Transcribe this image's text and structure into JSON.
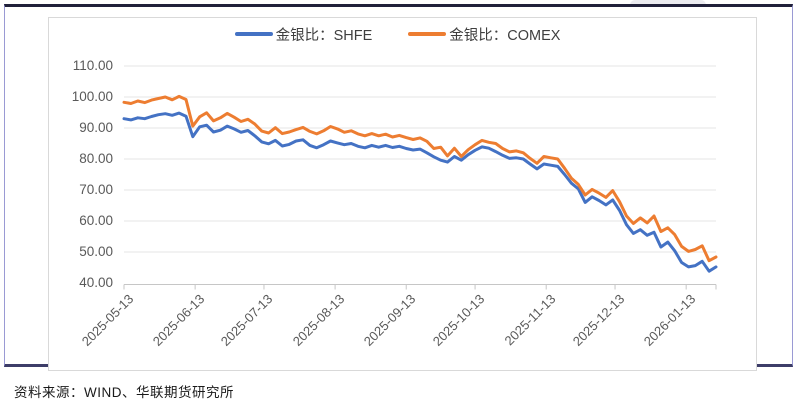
{
  "caption": "资料来源：WIND、华联期货研究所",
  "legend": {
    "items": [
      {
        "label": "金银比：SHFE",
        "color": "#4472C4"
      },
      {
        "label": "金银比：COMEX",
        "color": "#ED7D31"
      }
    ]
  },
  "chart_data": {
    "type": "line",
    "title": "",
    "xlabel": "",
    "ylabel": "",
    "grid": "horizontal",
    "legend_position": "top",
    "ylim": [
      40,
      110
    ],
    "y_ticks": [
      110,
      100,
      90,
      80,
      70,
      60,
      50,
      40
    ],
    "y_tick_labels": [
      "110.00",
      "100.00",
      "90.00",
      "80.00",
      "70.00",
      "60.00",
      "50.00",
      "40.00"
    ],
    "x_tick_labels": [
      "2025-05-13",
      "2025-06-13",
      "2025-07-13",
      "2025-08-13",
      "2025-09-13",
      "2025-10-13",
      "2025-11-13",
      "2025-12-13",
      "2026-01-13"
    ],
    "x_tick_day_index": [
      0,
      31,
      61,
      92,
      123,
      153,
      184,
      214,
      245
    ],
    "x_total_days": 258,
    "x_start": "2025-05-13",
    "x_end": "2026-01-26",
    "point_day_step": 3,
    "series": [
      {
        "name": "金银比：SHFE",
        "color": "#4472C4",
        "values": [
          93.0,
          92.6,
          93.3,
          93.0,
          93.7,
          94.3,
          94.6,
          94.1,
          94.8,
          93.8,
          87.2,
          90.4,
          90.9,
          88.7,
          89.3,
          90.6,
          89.7,
          88.6,
          89.2,
          87.5,
          85.5,
          84.9,
          86.0,
          84.2,
          84.7,
          85.8,
          86.2,
          84.4,
          83.6,
          84.6,
          85.8,
          85.2,
          84.6,
          85.0,
          84.1,
          83.6,
          84.4,
          83.8,
          84.4,
          83.7,
          84.1,
          83.4,
          82.9,
          83.2,
          82.0,
          80.7,
          79.6,
          79.0,
          80.8,
          79.6,
          81.4,
          82.8,
          83.9,
          83.5,
          82.4,
          81.2,
          80.2,
          80.4,
          80.0,
          78.4,
          76.8,
          78.4,
          78.0,
          77.6,
          75.0,
          72.2,
          70.4,
          66.0,
          67.8,
          66.6,
          65.2,
          66.8,
          63.4,
          58.8,
          56.0,
          57.2,
          55.4,
          56.4,
          51.6,
          53.2,
          50.4,
          46.6,
          45.2,
          45.6,
          47.0,
          43.8,
          45.2
        ]
      },
      {
        "name": "金银比：COMEX",
        "color": "#ED7D31",
        "values": [
          98.3,
          97.9,
          98.7,
          98.2,
          99.0,
          99.5,
          100.0,
          99.1,
          100.2,
          99.2,
          90.6,
          93.6,
          94.9,
          92.3,
          93.3,
          94.7,
          93.5,
          92.1,
          92.8,
          91.3,
          89.0,
          88.4,
          90.1,
          88.2,
          88.7,
          89.5,
          90.2,
          88.9,
          88.1,
          89.1,
          90.5,
          89.7,
          88.6,
          89.1,
          88.1,
          87.5,
          88.2,
          87.5,
          88.0,
          87.1,
          87.6,
          86.9,
          86.3,
          86.8,
          85.7,
          83.4,
          83.8,
          81.0,
          83.5,
          80.8,
          83.0,
          84.6,
          86.0,
          85.4,
          85.0,
          83.4,
          82.3,
          82.6,
          82.0,
          80.2,
          78.6,
          80.8,
          80.4,
          80.0,
          77.0,
          73.8,
          71.8,
          68.4,
          70.2,
          69.0,
          67.6,
          69.8,
          66.2,
          61.6,
          59.2,
          61.0,
          59.4,
          61.6,
          56.6,
          57.8,
          55.6,
          51.8,
          50.2,
          50.8,
          52.0,
          47.2,
          48.4
        ]
      }
    ]
  }
}
